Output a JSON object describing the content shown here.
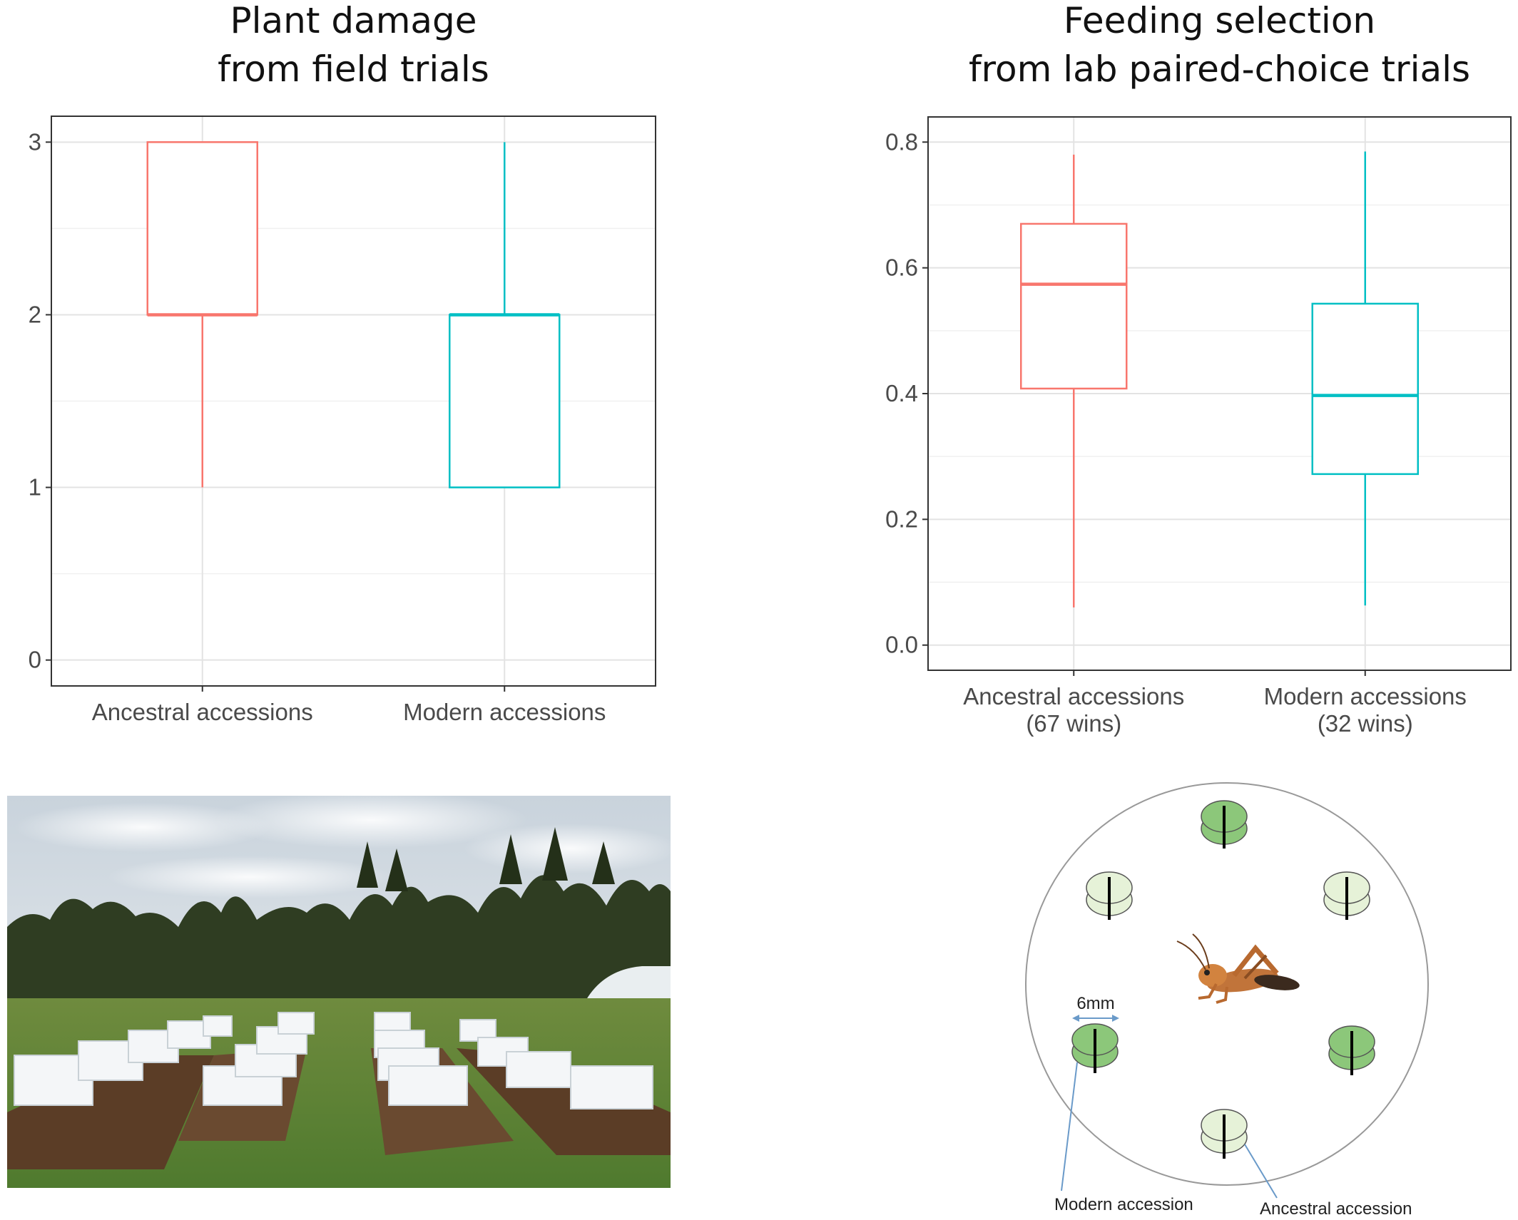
{
  "chart_data": [
    {
      "type": "box",
      "title_lines": [
        "Plant damage",
        "from field trials"
      ],
      "categories": [
        [
          "Ancestral accessions"
        ],
        [
          "Modern accessions"
        ]
      ],
      "yticks": [
        "0",
        "1",
        "2",
        "3"
      ],
      "ylim": [
        -0.15,
        3.15
      ],
      "boxes": [
        {
          "min": 1,
          "q1": 2,
          "median": 2,
          "q3": 3,
          "max": 3,
          "color": "#F8766D"
        },
        {
          "min": 1,
          "q1": 1,
          "median": 2,
          "q3": 2,
          "max": 3,
          "color": "#00BFC4"
        }
      ],
      "grid": true
    },
    {
      "type": "box",
      "title_lines": [
        "Feeding selection",
        "from lab paired-choice trials"
      ],
      "categories": [
        [
          "Ancestral accessions",
          "(67 wins)"
        ],
        [
          "Modern accessions",
          "(32 wins)"
        ]
      ],
      "yticks": [
        "0.0",
        "0.2",
        "0.4",
        "0.6",
        "0.8"
      ],
      "ylim": [
        -0.04,
        0.84
      ],
      "boxes": [
        {
          "min": 0.06,
          "q1": 0.408,
          "median": 0.574,
          "q3": 0.67,
          "max": 0.78,
          "color": "#F8766D"
        },
        {
          "min": 0.063,
          "q1": 0.272,
          "median": 0.397,
          "q3": 0.543,
          "max": 0.785,
          "color": "#00BFC4"
        }
      ],
      "grid": true
    }
  ],
  "diagram": {
    "size_label": "6mm",
    "modern_label": "Modern accession",
    "ancestral_label": "Ancestral accession",
    "modern_color": "#8cc77a",
    "ancestral_color": "#e6f2d8"
  }
}
